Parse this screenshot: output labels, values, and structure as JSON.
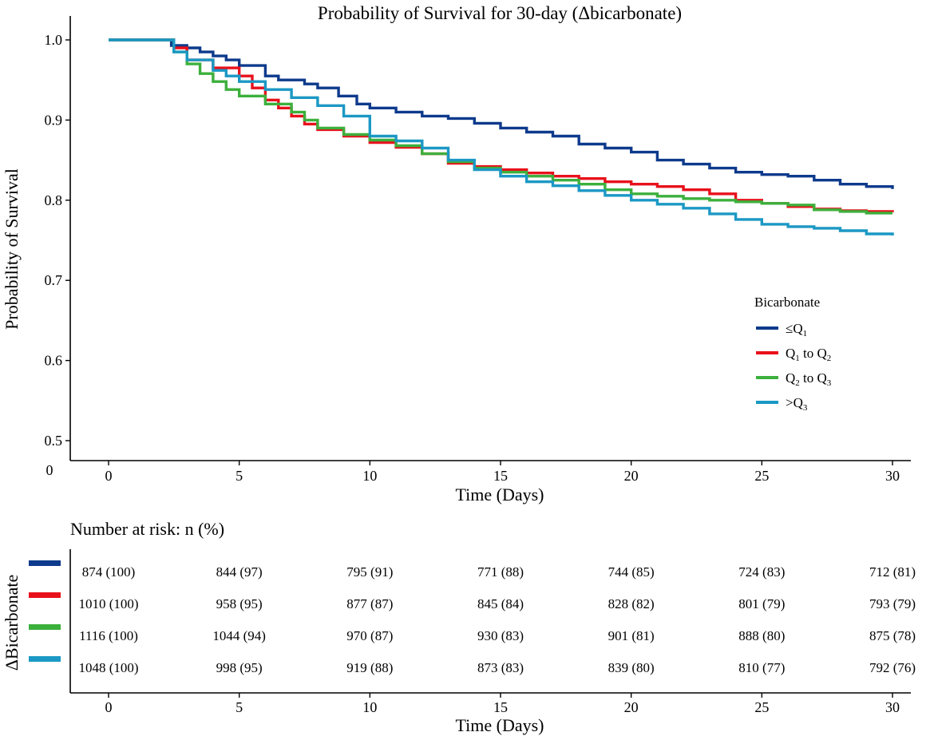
{
  "chart_data": {
    "type": "line",
    "title": "Probability of Survival for 30-day (Δbicarbonate)",
    "xlabel": "Time (Days)",
    "ylabel": "Probability of Survival",
    "x_ticks": [
      0,
      5,
      10,
      15,
      20,
      25,
      30
    ],
    "y_ticks": [
      0.5,
      0.6,
      0.7,
      0.8,
      0.9,
      1.0
    ],
    "y_tick_labels": [
      "0.5",
      "0.6",
      "0.7",
      "0.8",
      "0.9",
      "1.0"
    ],
    "y_origin_label": "0",
    "xlim": [
      0,
      30
    ],
    "ylim": [
      0.5,
      1.0
    ],
    "legend": {
      "title": "Bicarbonate",
      "position": "right",
      "entries": [
        {
          "prefix": "≤Q",
          "sub1": "1",
          "mid": "",
          "sub2": ""
        },
        {
          "prefix": "Q",
          "sub1": "1",
          "mid": " to Q",
          "sub2": "2"
        },
        {
          "prefix": "Q",
          "sub1": "2",
          "mid": " to Q",
          "sub2": "3"
        },
        {
          "prefix": ">Q",
          "sub1": "3",
          "mid": "",
          "sub2": ""
        }
      ]
    },
    "series": [
      {
        "name": "≤Q1",
        "color": "#0d3a8c",
        "points": [
          [
            0,
            1.0
          ],
          [
            2.2,
            1.0
          ],
          [
            2.4,
            0.993
          ],
          [
            3.0,
            0.99
          ],
          [
            3.5,
            0.985
          ],
          [
            4.0,
            0.98
          ],
          [
            4.5,
            0.975
          ],
          [
            5.0,
            0.968
          ],
          [
            6.0,
            0.955
          ],
          [
            6.5,
            0.95
          ],
          [
            7.5,
            0.945
          ],
          [
            8.0,
            0.94
          ],
          [
            8.8,
            0.93
          ],
          [
            9.5,
            0.92
          ],
          [
            10.0,
            0.915
          ],
          [
            11.0,
            0.91
          ],
          [
            12.0,
            0.905
          ],
          [
            13.0,
            0.902
          ],
          [
            14.0,
            0.896
          ],
          [
            15.0,
            0.89
          ],
          [
            16.0,
            0.885
          ],
          [
            17.0,
            0.88
          ],
          [
            18.0,
            0.87
          ],
          [
            19.0,
            0.865
          ],
          [
            20.0,
            0.86
          ],
          [
            21.0,
            0.85
          ],
          [
            22.0,
            0.845
          ],
          [
            23.0,
            0.84
          ],
          [
            24.0,
            0.835
          ],
          [
            25.0,
            0.832
          ],
          [
            26.0,
            0.83
          ],
          [
            27.0,
            0.825
          ],
          [
            28.0,
            0.82
          ],
          [
            29.0,
            0.817
          ],
          [
            30.0,
            0.814
          ]
        ]
      },
      {
        "name": "Q1 to Q2",
        "color": "#e8111b",
        "points": [
          [
            0,
            1.0
          ],
          [
            2.1,
            1.0
          ],
          [
            2.5,
            0.99
          ],
          [
            3.0,
            0.975
          ],
          [
            4.0,
            0.965
          ],
          [
            5.0,
            0.955
          ],
          [
            5.5,
            0.94
          ],
          [
            6.0,
            0.925
          ],
          [
            6.5,
            0.915
          ],
          [
            7.0,
            0.905
          ],
          [
            7.5,
            0.895
          ],
          [
            8.0,
            0.888
          ],
          [
            9.0,
            0.88
          ],
          [
            10.0,
            0.872
          ],
          [
            11.0,
            0.866
          ],
          [
            12.0,
            0.858
          ],
          [
            13.0,
            0.846
          ],
          [
            14.0,
            0.842
          ],
          [
            15.0,
            0.838
          ],
          [
            16.0,
            0.834
          ],
          [
            17.0,
            0.83
          ],
          [
            18.0,
            0.827
          ],
          [
            19.0,
            0.823
          ],
          [
            20.0,
            0.82
          ],
          [
            21.0,
            0.817
          ],
          [
            22.0,
            0.813
          ],
          [
            23.0,
            0.808
          ],
          [
            24.0,
            0.8
          ],
          [
            25.0,
            0.796
          ],
          [
            26.0,
            0.792
          ],
          [
            27.0,
            0.789
          ],
          [
            28.0,
            0.787
          ],
          [
            29.0,
            0.786
          ],
          [
            30.0,
            0.785
          ]
        ]
      },
      {
        "name": "Q2 to Q3",
        "color": "#3cb03c",
        "points": [
          [
            0,
            1.0
          ],
          [
            2.0,
            1.0
          ],
          [
            2.5,
            0.985
          ],
          [
            3.0,
            0.97
          ],
          [
            3.5,
            0.958
          ],
          [
            4.0,
            0.948
          ],
          [
            4.5,
            0.938
          ],
          [
            5.0,
            0.93
          ],
          [
            6.0,
            0.92
          ],
          [
            7.0,
            0.91
          ],
          [
            7.5,
            0.9
          ],
          [
            8.0,
            0.89
          ],
          [
            9.0,
            0.882
          ],
          [
            10.0,
            0.875
          ],
          [
            11.0,
            0.868
          ],
          [
            12.0,
            0.858
          ],
          [
            13.0,
            0.848
          ],
          [
            14.0,
            0.84
          ],
          [
            15.0,
            0.835
          ],
          [
            16.0,
            0.83
          ],
          [
            17.0,
            0.825
          ],
          [
            18.0,
            0.82
          ],
          [
            19.0,
            0.813
          ],
          [
            20.0,
            0.808
          ],
          [
            21.0,
            0.805
          ],
          [
            22.0,
            0.802
          ],
          [
            23.0,
            0.8
          ],
          [
            24.0,
            0.798
          ],
          [
            25.0,
            0.796
          ],
          [
            26.0,
            0.794
          ],
          [
            27.0,
            0.788
          ],
          [
            28.0,
            0.786
          ],
          [
            29.0,
            0.784
          ],
          [
            30.0,
            0.784
          ]
        ]
      },
      {
        "name": ">Q3",
        "color": "#1b98c4",
        "points": [
          [
            0,
            1.0
          ],
          [
            2.1,
            1.0
          ],
          [
            2.5,
            0.985
          ],
          [
            3.0,
            0.975
          ],
          [
            4.0,
            0.962
          ],
          [
            4.5,
            0.955
          ],
          [
            5.0,
            0.948
          ],
          [
            6.0,
            0.938
          ],
          [
            7.0,
            0.928
          ],
          [
            8.0,
            0.918
          ],
          [
            9.0,
            0.905
          ],
          [
            10.0,
            0.88
          ],
          [
            11.0,
            0.874
          ],
          [
            12.0,
            0.865
          ],
          [
            13.0,
            0.85
          ],
          [
            14.0,
            0.838
          ],
          [
            15.0,
            0.83
          ],
          [
            16.0,
            0.823
          ],
          [
            17.0,
            0.818
          ],
          [
            18.0,
            0.812
          ],
          [
            19.0,
            0.806
          ],
          [
            20.0,
            0.8
          ],
          [
            21.0,
            0.795
          ],
          [
            22.0,
            0.79
          ],
          [
            23.0,
            0.783
          ],
          [
            24.0,
            0.776
          ],
          [
            25.0,
            0.77
          ],
          [
            26.0,
            0.767
          ],
          [
            27.0,
            0.765
          ],
          [
            28.0,
            0.762
          ],
          [
            29.0,
            0.758
          ],
          [
            30.0,
            0.756
          ]
        ]
      }
    ]
  },
  "risk_table": {
    "title": "Number at risk: n (%)",
    "ylabel": "ΔBicarbonate",
    "xlabel": "Time (Days)",
    "times": [
      0,
      5,
      10,
      15,
      20,
      25,
      30
    ],
    "rows": [
      {
        "color": "#0d3a8c",
        "cells": [
          "874 (100)",
          "844 (97)",
          "795 (91)",
          "771 (88)",
          "744 (85)",
          "724 (83)",
          "712 (81)"
        ]
      },
      {
        "color": "#e8111b",
        "cells": [
          "1010 (100)",
          "958 (95)",
          "877 (87)",
          "845 (84)",
          "828 (82)",
          "801 (79)",
          "793 (79)"
        ]
      },
      {
        "color": "#3cb03c",
        "cells": [
          "1116 (100)",
          "1044 (94)",
          "970 (87)",
          "930 (83)",
          "901 (81)",
          "888 (80)",
          "875 (78)"
        ]
      },
      {
        "color": "#1b98c4",
        "cells": [
          "1048 (100)",
          "998 (95)",
          "919 (88)",
          "873 (83)",
          "839 (80)",
          "810 (77)",
          "792 (76)"
        ]
      }
    ]
  }
}
